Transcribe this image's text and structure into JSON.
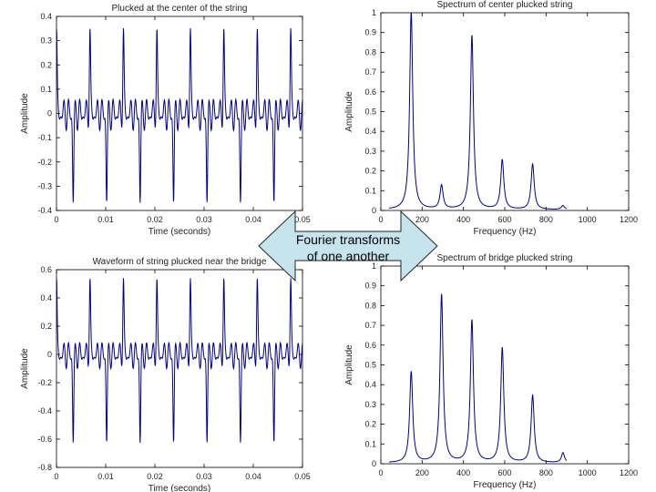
{
  "arrow": {
    "line1": "Fourier transforms",
    "line2": "of one another"
  },
  "colors": {
    "trace": "#00008b",
    "arrow_fill": "#c6e4ec"
  },
  "chart_data": [
    {
      "id": "wave-center",
      "type": "line",
      "title": "Plucked at the center of the string",
      "xlabel": "Time (seconds)",
      "ylabel": "Amplitude",
      "xlim": [
        0,
        0.05
      ],
      "ylim": [
        -0.4,
        0.4
      ],
      "xticks": [
        "0",
        "0.01",
        "0.02",
        "0.03",
        "0.04",
        "0.05"
      ],
      "yticks": [
        "-0.4",
        "-0.3",
        "-0.2",
        "-0.1",
        "0",
        "0.1",
        "0.2",
        "0.3",
        "0.4"
      ],
      "signal": {
        "kind": "waveform",
        "period": 0.0068,
        "peak_high": 0.33,
        "peak_low": -0.35,
        "ripple": 0.07
      }
    },
    {
      "id": "spec-center",
      "type": "line",
      "title": "Spectrum of center plucked string",
      "xlabel": "Frequency (Hz)",
      "ylabel": "Amplitude",
      "xlim": [
        0,
        1200
      ],
      "ylim": [
        0,
        1
      ],
      "xticks": [
        "0",
        "200",
        "400",
        "600",
        "800",
        "1000",
        "1200"
      ],
      "yticks": [
        "0",
        "0.1",
        "0.2",
        "0.3",
        "0.4",
        "0.5",
        "0.6",
        "0.7",
        "0.8",
        "0.9",
        "1"
      ],
      "peaks": [
        {
          "f": 147,
          "a": 1.0
        },
        {
          "f": 294,
          "a": 0.12
        },
        {
          "f": 441,
          "a": 0.88
        },
        {
          "f": 588,
          "a": 0.25
        },
        {
          "f": 735,
          "a": 0.23
        },
        {
          "f": 882,
          "a": 0.02
        }
      ]
    },
    {
      "id": "wave-bridge",
      "type": "line",
      "title": "Waveform of string plucked near the bridge",
      "xlabel": "Time (seconds)",
      "ylabel": "Amplitude",
      "xlim": [
        0,
        0.05
      ],
      "ylim": [
        -0.8,
        0.6
      ],
      "xticks": [
        "0",
        "0.01",
        "0.02",
        "0.03",
        "0.04",
        "0.05"
      ],
      "yticks": [
        "-0.8",
        "-0.6",
        "-0.4",
        "-0.2",
        "0",
        "0.2",
        "0.4",
        "0.6"
      ],
      "signal": {
        "kind": "waveform",
        "period": 0.0068,
        "peak_high": 0.51,
        "peak_low": -0.6,
        "ripple": 0.1
      }
    },
    {
      "id": "spec-bridge",
      "type": "line",
      "title": "Spectrum of bridge plucked string",
      "xlabel": "Frequency (Hz)",
      "ylabel": "Amplitude",
      "xlim": [
        0,
        1200
      ],
      "ylim": [
        0,
        1
      ],
      "xticks": [
        "0",
        "200",
        "400",
        "600",
        "800",
        "1000",
        "1200"
      ],
      "yticks": [
        "0",
        "0.1",
        "0.2",
        "0.3",
        "0.4",
        "0.5",
        "0.6",
        "0.7",
        "0.8",
        "0.9",
        "1"
      ],
      "peaks": [
        {
          "f": 147,
          "a": 0.46
        },
        {
          "f": 294,
          "a": 0.85
        },
        {
          "f": 441,
          "a": 0.72
        },
        {
          "f": 588,
          "a": 0.58
        },
        {
          "f": 735,
          "a": 0.34
        },
        {
          "f": 882,
          "a": 0.05
        },
        {
          "f": 1029,
          "a": 0.04
        }
      ]
    }
  ]
}
